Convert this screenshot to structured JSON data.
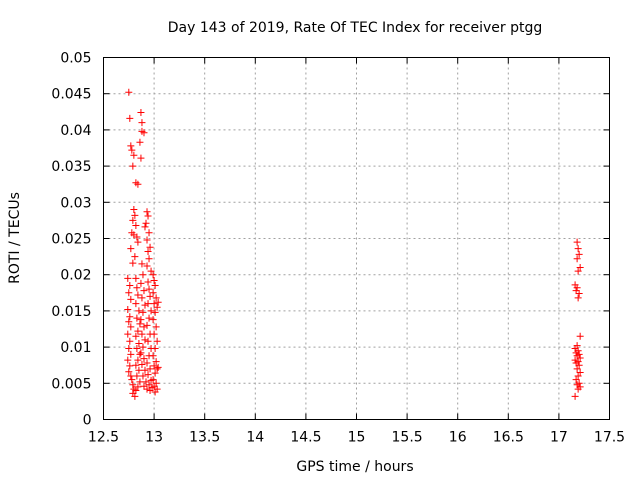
{
  "chart_data": {
    "type": "scatter",
    "title": "Day 143 of 2019, Rate Of TEC Index for receiver ptgg",
    "xlabel": "GPS time / hours",
    "ylabel": "ROTI / TECUs",
    "xlim": [
      12.5,
      17.5
    ],
    "ylim": [
      0,
      0.05
    ],
    "grid": true,
    "marker": "+",
    "color": "#ff0000",
    "xticks": [
      12.5,
      13,
      13.5,
      14,
      14.5,
      15,
      15.5,
      16,
      16.5,
      17,
      17.5
    ],
    "xtick_labels": [
      "12.5",
      "13",
      "13.5",
      "14",
      "14.5",
      "15",
      "15.5",
      "16",
      "16.5",
      "17",
      "17.5"
    ],
    "yticks": [
      0,
      0.005,
      0.01,
      0.015,
      0.02,
      0.025,
      0.03,
      0.035,
      0.04,
      0.045,
      0.05
    ],
    "ytick_labels": [
      "0",
      "0.005",
      "0.01",
      "0.015",
      "0.02",
      "0.025",
      "0.03",
      "0.035",
      "0.04",
      "0.045",
      "0.05"
    ],
    "series": [
      {
        "name": "ROTI",
        "points": [
          [
            12.75,
            0.0452
          ],
          [
            12.76,
            0.0416
          ],
          [
            12.77,
            0.0378
          ],
          [
            12.78,
            0.0372
          ],
          [
            12.79,
            0.035
          ],
          [
            12.8,
            0.0365
          ],
          [
            12.82,
            0.0327
          ],
          [
            12.84,
            0.0325
          ],
          [
            12.87,
            0.0424
          ],
          [
            12.88,
            0.041
          ],
          [
            12.88,
            0.0398
          ],
          [
            12.86,
            0.0383
          ],
          [
            12.87,
            0.0361
          ],
          [
            12.9,
            0.0396
          ],
          [
            12.8,
            0.029
          ],
          [
            12.81,
            0.0282
          ],
          [
            12.79,
            0.0275
          ],
          [
            12.82,
            0.0268
          ],
          [
            12.78,
            0.0258
          ],
          [
            12.8,
            0.0255
          ],
          [
            12.83,
            0.0252
          ],
          [
            12.77,
            0.0236
          ],
          [
            12.79,
            0.0216
          ],
          [
            12.81,
            0.0225
          ],
          [
            12.84,
            0.0245
          ],
          [
            12.93,
            0.0287
          ],
          [
            12.94,
            0.0281
          ],
          [
            12.92,
            0.0271
          ],
          [
            12.91,
            0.0266
          ],
          [
            12.95,
            0.0258
          ],
          [
            12.93,
            0.0248
          ],
          [
            12.96,
            0.0238
          ],
          [
            12.94,
            0.0232
          ],
          [
            12.95,
            0.0222
          ],
          [
            12.93,
            0.0212
          ],
          [
            12.97,
            0.0205
          ],
          [
            12.74,
            0.0195
          ],
          [
            12.76,
            0.0185
          ],
          [
            12.75,
            0.0175
          ],
          [
            12.77,
            0.0166
          ],
          [
            12.74,
            0.0152
          ],
          [
            12.76,
            0.0142
          ],
          [
            12.75,
            0.0135
          ],
          [
            12.77,
            0.0128
          ],
          [
            12.74,
            0.0118
          ],
          [
            12.76,
            0.0108
          ],
          [
            12.75,
            0.0098
          ],
          [
            12.77,
            0.009
          ],
          [
            12.74,
            0.0082
          ],
          [
            12.76,
            0.0074
          ],
          [
            12.75,
            0.0066
          ],
          [
            12.77,
            0.006
          ],
          [
            12.78,
            0.0055
          ],
          [
            12.79,
            0.0048
          ],
          [
            12.8,
            0.0042
          ],
          [
            12.79,
            0.0036
          ],
          [
            12.81,
            0.0032
          ],
          [
            12.82,
            0.0195
          ],
          [
            12.83,
            0.0182
          ],
          [
            12.84,
            0.0172
          ],
          [
            12.82,
            0.016
          ],
          [
            12.85,
            0.015
          ],
          [
            12.83,
            0.014
          ],
          [
            12.86,
            0.0132
          ],
          [
            12.84,
            0.0122
          ],
          [
            12.82,
            0.0115
          ],
          [
            12.85,
            0.0105
          ],
          [
            12.83,
            0.0098
          ],
          [
            12.86,
            0.009
          ],
          [
            12.84,
            0.0082
          ],
          [
            12.82,
            0.0075
          ],
          [
            12.85,
            0.0068
          ],
          [
            12.83,
            0.006
          ],
          [
            12.86,
            0.0052
          ],
          [
            12.84,
            0.0045
          ],
          [
            12.82,
            0.004
          ],
          [
            12.88,
            0.0215
          ],
          [
            12.89,
            0.02
          ],
          [
            12.87,
            0.0188
          ],
          [
            12.9,
            0.0178
          ],
          [
            12.88,
            0.0168
          ],
          [
            12.91,
            0.0158
          ],
          [
            12.89,
            0.0148
          ],
          [
            12.87,
            0.0138
          ],
          [
            12.9,
            0.0128
          ],
          [
            12.88,
            0.0118
          ],
          [
            12.91,
            0.011
          ],
          [
            12.89,
            0.01
          ],
          [
            12.87,
            0.0092
          ],
          [
            12.9,
            0.0084
          ],
          [
            12.88,
            0.0076
          ],
          [
            12.91,
            0.0068
          ],
          [
            12.89,
            0.006
          ],
          [
            12.92,
            0.0052
          ],
          [
            12.9,
            0.0046
          ],
          [
            12.93,
            0.0042
          ],
          [
            12.94,
            0.019
          ],
          [
            12.95,
            0.018
          ],
          [
            12.96,
            0.017
          ],
          [
            12.94,
            0.016
          ],
          [
            12.97,
            0.015
          ],
          [
            12.95,
            0.014
          ],
          [
            12.93,
            0.013
          ],
          [
            12.96,
            0.0118
          ],
          [
            12.94,
            0.0108
          ],
          [
            12.97,
            0.0098
          ],
          [
            12.95,
            0.0088
          ],
          [
            12.93,
            0.0078
          ],
          [
            12.96,
            0.007
          ],
          [
            12.94,
            0.0062
          ],
          [
            12.97,
            0.0054
          ],
          [
            12.95,
            0.0048
          ],
          [
            12.98,
            0.0044
          ],
          [
            12.96,
            0.004
          ],
          [
            12.99,
            0.02
          ],
          [
            13.0,
            0.0192
          ],
          [
            13.01,
            0.0185
          ],
          [
            12.99,
            0.0175
          ],
          [
            13.02,
            0.0168
          ],
          [
            13.0,
            0.016
          ],
          [
            13.03,
            0.0155
          ],
          [
            13.01,
            0.0148
          ],
          [
            12.99,
            0.0138
          ],
          [
            13.02,
            0.0128
          ],
          [
            13.0,
            0.0118
          ],
          [
            13.03,
            0.0108
          ],
          [
            13.01,
            0.0098
          ],
          [
            12.99,
            0.0088
          ],
          [
            13.02,
            0.008
          ],
          [
            13.0,
            0.0074
          ],
          [
            13.03,
            0.007
          ],
          [
            13.01,
            0.0064
          ],
          [
            12.99,
            0.0055
          ],
          [
            13.02,
            0.005
          ],
          [
            13.0,
            0.0046
          ],
          [
            13.03,
            0.0042
          ],
          [
            13.01,
            0.0038
          ],
          [
            13.04,
            0.0162
          ],
          [
            13.04,
            0.0072
          ],
          [
            17.18,
            0.0245
          ],
          [
            17.19,
            0.0236
          ],
          [
            17.2,
            0.0228
          ],
          [
            17.18,
            0.0222
          ],
          [
            17.21,
            0.021
          ],
          [
            17.19,
            0.0205
          ],
          [
            17.16,
            0.0186
          ],
          [
            17.18,
            0.0182
          ],
          [
            17.17,
            0.0178
          ],
          [
            17.2,
            0.0174
          ],
          [
            17.19,
            0.0168
          ],
          [
            17.21,
            0.0115
          ],
          [
            17.18,
            0.0102
          ],
          [
            17.16,
            0.0098
          ],
          [
            17.19,
            0.0095
          ],
          [
            17.17,
            0.0092
          ],
          [
            17.2,
            0.009
          ],
          [
            17.18,
            0.0088
          ],
          [
            17.21,
            0.0085
          ],
          [
            17.16,
            0.0082
          ],
          [
            17.19,
            0.008
          ],
          [
            17.17,
            0.0078
          ],
          [
            17.2,
            0.0075
          ],
          [
            17.18,
            0.007
          ],
          [
            17.21,
            0.0065
          ],
          [
            17.19,
            0.006
          ],
          [
            17.17,
            0.0055
          ],
          [
            17.2,
            0.005
          ],
          [
            17.18,
            0.0048
          ],
          [
            17.21,
            0.0045
          ],
          [
            17.19,
            0.0042
          ],
          [
            17.16,
            0.0032
          ]
        ]
      }
    ]
  }
}
